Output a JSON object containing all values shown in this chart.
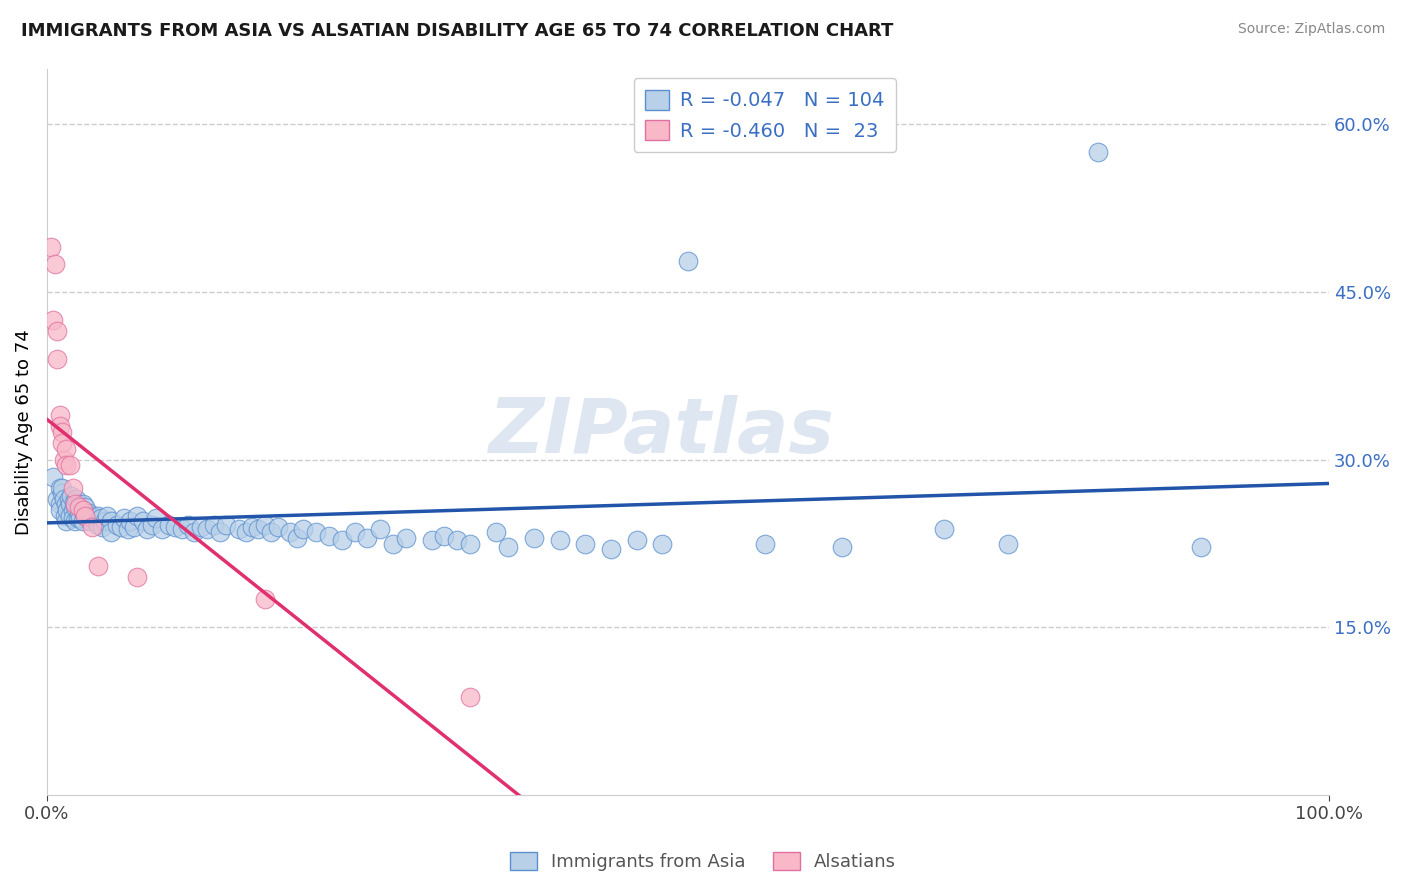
{
  "title": "IMMIGRANTS FROM ASIA VS ALSATIAN DISABILITY AGE 65 TO 74 CORRELATION CHART",
  "source": "Source: ZipAtlas.com",
  "ylabel": "Disability Age 65 to 74",
  "xlim": [
    0,
    1.0
  ],
  "ylim": [
    0,
    0.65
  ],
  "xtick_labels": [
    "0.0%",
    "100.0%"
  ],
  "xtick_vals": [
    0.0,
    1.0
  ],
  "ytick_labels_right": [
    "15.0%",
    "30.0%",
    "45.0%",
    "60.0%"
  ],
  "ytick_vals_right": [
    0.15,
    0.3,
    0.45,
    0.6
  ],
  "blue_R": -0.047,
  "blue_N": 104,
  "pink_R": -0.46,
  "pink_N": 23,
  "blue_fill": "#b8d0e8",
  "blue_edge": "#5a90d0",
  "blue_line_color": "#2255aa",
  "pink_fill": "#f8b8c8",
  "pink_edge": "#e070a0",
  "pink_line_color": "#e03070",
  "legend_color": "#3a6fc4",
  "watermark_text": "ZIPatlas",
  "blue_scatter_x": [
    0.005,
    0.008,
    0.01,
    0.01,
    0.01,
    0.012,
    0.012,
    0.013,
    0.014,
    0.015,
    0.015,
    0.016,
    0.017,
    0.018,
    0.018,
    0.019,
    0.02,
    0.02,
    0.021,
    0.022,
    0.022,
    0.023,
    0.024,
    0.025,
    0.025,
    0.026,
    0.027,
    0.028,
    0.028,
    0.03,
    0.03,
    0.032,
    0.033,
    0.034,
    0.035,
    0.036,
    0.038,
    0.04,
    0.04,
    0.042,
    0.043,
    0.045,
    0.047,
    0.05,
    0.05,
    0.055,
    0.058,
    0.06,
    0.063,
    0.065,
    0.068,
    0.07,
    0.075,
    0.078,
    0.082,
    0.085,
    0.09,
    0.095,
    0.1,
    0.105,
    0.11,
    0.115,
    0.12,
    0.125,
    0.13,
    0.135,
    0.14,
    0.15,
    0.155,
    0.16,
    0.165,
    0.17,
    0.175,
    0.18,
    0.19,
    0.195,
    0.2,
    0.21,
    0.22,
    0.23,
    0.24,
    0.25,
    0.26,
    0.27,
    0.28,
    0.3,
    0.31,
    0.32,
    0.33,
    0.35,
    0.36,
    0.38,
    0.4,
    0.42,
    0.44,
    0.46,
    0.48,
    0.5,
    0.56,
    0.62,
    0.7,
    0.75,
    0.82,
    0.9
  ],
  "blue_scatter_y": [
    0.285,
    0.265,
    0.275,
    0.26,
    0.255,
    0.27,
    0.275,
    0.265,
    0.25,
    0.26,
    0.245,
    0.255,
    0.265,
    0.26,
    0.25,
    0.268,
    0.255,
    0.248,
    0.262,
    0.258,
    0.245,
    0.265,
    0.248,
    0.26,
    0.252,
    0.248,
    0.255,
    0.26,
    0.245,
    0.258,
    0.25,
    0.248,
    0.252,
    0.245,
    0.25,
    0.248,
    0.245,
    0.25,
    0.242,
    0.248,
    0.24,
    0.245,
    0.25,
    0.245,
    0.235,
    0.242,
    0.24,
    0.248,
    0.238,
    0.245,
    0.24,
    0.25,
    0.245,
    0.238,
    0.242,
    0.248,
    0.238,
    0.242,
    0.24,
    0.238,
    0.242,
    0.235,
    0.24,
    0.238,
    0.242,
    0.235,
    0.242,
    0.238,
    0.235,
    0.24,
    0.238,
    0.242,
    0.235,
    0.24,
    0.235,
    0.23,
    0.238,
    0.235,
    0.232,
    0.228,
    0.235,
    0.23,
    0.238,
    0.225,
    0.23,
    0.228,
    0.232,
    0.228,
    0.225,
    0.235,
    0.222,
    0.23,
    0.228,
    0.225,
    0.22,
    0.228,
    0.225,
    0.478,
    0.225,
    0.222,
    0.238,
    0.225,
    0.575,
    0.222
  ],
  "pink_scatter_x": [
    0.003,
    0.005,
    0.006,
    0.008,
    0.008,
    0.01,
    0.01,
    0.012,
    0.012,
    0.013,
    0.015,
    0.015,
    0.018,
    0.02,
    0.022,
    0.025,
    0.028,
    0.03,
    0.035,
    0.04,
    0.07,
    0.17,
    0.33
  ],
  "pink_scatter_y": [
    0.49,
    0.425,
    0.475,
    0.39,
    0.415,
    0.34,
    0.33,
    0.325,
    0.315,
    0.3,
    0.31,
    0.295,
    0.295,
    0.275,
    0.26,
    0.258,
    0.255,
    0.25,
    0.24,
    0.205,
    0.195,
    0.175,
    0.088
  ]
}
